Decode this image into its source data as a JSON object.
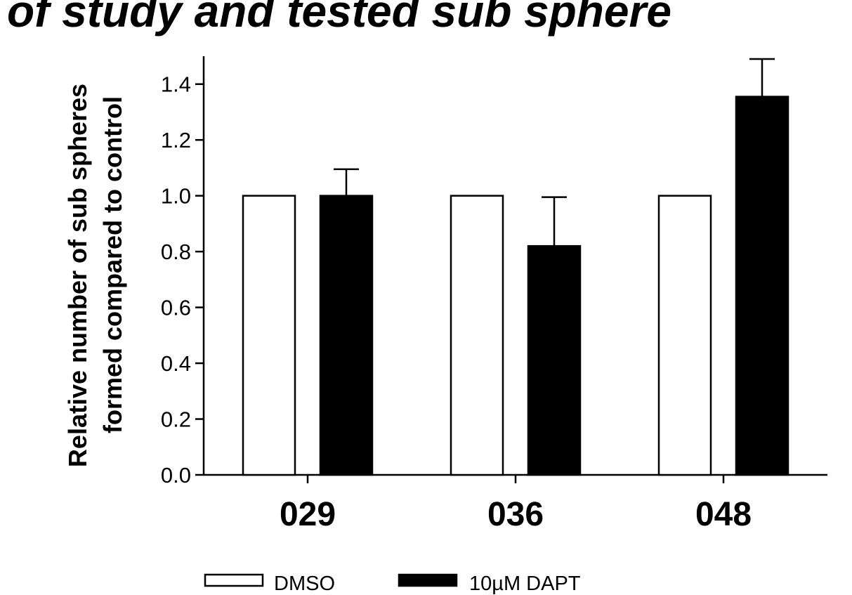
{
  "header_fragment": "of study        and tested sub sphere",
  "chart_data": {
    "type": "bar",
    "categories": [
      "029",
      "036",
      "048"
    ],
    "series": [
      {
        "name": "DMSO",
        "values": [
          1.0,
          1.0,
          1.0
        ],
        "errors": [
          0,
          0,
          0
        ],
        "color": "#ffffff"
      },
      {
        "name": "10µM DAPT",
        "values": [
          1.0,
          0.82,
          1.355
        ],
        "errors": [
          0.095,
          0.175,
          0.135
        ],
        "color": "#000000"
      }
    ],
    "title": "",
    "xlabel": "",
    "ylabel_lines": [
      "Relative number of sub spheres",
      "formed compared to control"
    ],
    "ylim": [
      0,
      1.5
    ],
    "yticks": [
      "0.0",
      "0.2",
      "0.4",
      "0.6",
      "0.8",
      "1.0",
      "1.2",
      "1.4"
    ],
    "legend_position": "bottom",
    "grid": false
  }
}
